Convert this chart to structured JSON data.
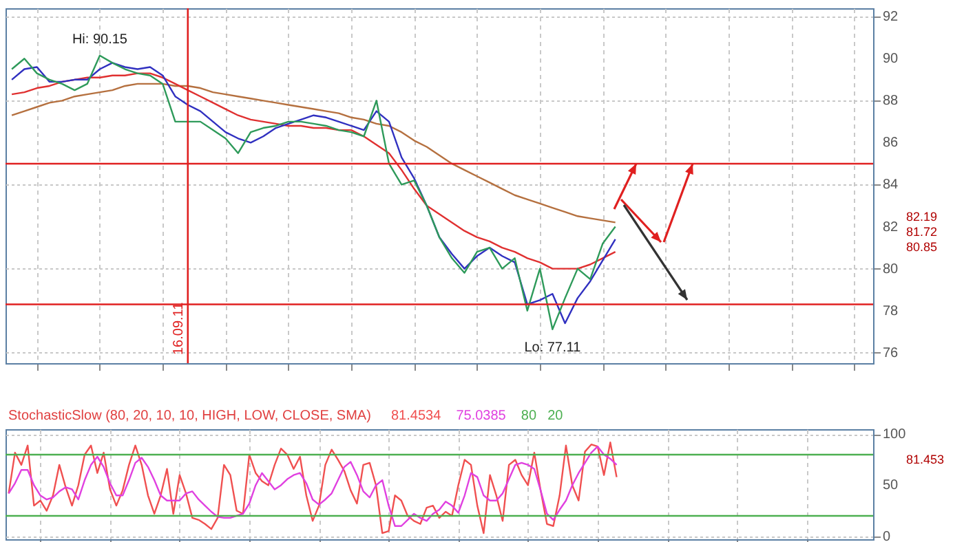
{
  "chart_data": [
    {
      "type": "line",
      "categories": [
        null,
        null,
        null,
        null,
        null,
        null,
        null,
        null,
        null,
        null,
        null,
        null,
        null,
        null,
        null,
        null,
        null,
        null,
        null,
        null,
        null,
        null,
        null,
        null,
        null,
        null,
        null,
        null,
        null,
        null,
        null,
        null,
        null,
        null,
        null,
        null,
        null,
        null,
        null,
        null,
        null,
        null,
        null,
        null,
        null,
        null,
        null,
        null,
        null,
        null,
        null,
        null,
        null,
        null,
        null,
        null,
        null,
        null,
        null,
        null,
        null,
        null,
        null,
        null,
        null,
        null,
        null,
        null,
        null
      ],
      "ylim": [
        75.5,
        92.4
      ],
      "yticks": [
        76,
        78,
        80,
        82,
        84,
        86,
        88,
        90,
        92
      ],
      "tick_labels": "y",
      "grid": true,
      "line_style": "solid",
      "series": [
        {
          "color": "#b5703f",
          "values": [
            87.3,
            87.5,
            87.7,
            87.9,
            88.0,
            88.2,
            88.3,
            88.4,
            88.5,
            88.7,
            88.8,
            88.8,
            88.8,
            88.7,
            88.7,
            88.6,
            88.4,
            88.3,
            88.2,
            88.1,
            88.0,
            87.9,
            87.8,
            87.7,
            87.6,
            87.5,
            87.4,
            87.2,
            87.1,
            86.9,
            86.8,
            86.5,
            86.1,
            85.8,
            85.4,
            85.0,
            84.7,
            84.4,
            84.1,
            83.8,
            83.5,
            83.3,
            83.1,
            82.9,
            82.7,
            82.5,
            82.4,
            82.3,
            82.2,
            null,
            null,
            null,
            null,
            null,
            null,
            null,
            null,
            null,
            null,
            null,
            null,
            null,
            null,
            null,
            null,
            null,
            null,
            null,
            null
          ]
        },
        {
          "color": "#e03030",
          "values": [
            88.3,
            88.4,
            88.6,
            88.7,
            88.9,
            89.0,
            89.1,
            89.1,
            89.2,
            89.2,
            89.3,
            89.3,
            89.1,
            88.8,
            88.5,
            88.2,
            87.9,
            87.6,
            87.3,
            87.1,
            87.0,
            86.9,
            86.8,
            86.8,
            86.7,
            86.7,
            86.6,
            86.6,
            86.3,
            85.9,
            85.5,
            84.7,
            83.8,
            83.0,
            82.6,
            82.2,
            81.8,
            81.5,
            81.3,
            81.0,
            80.8,
            80.5,
            80.3,
            80.0,
            80.0,
            80.0,
            80.2,
            80.5,
            80.8,
            null,
            null,
            null,
            null,
            null,
            null,
            null,
            null,
            null,
            null,
            null,
            null,
            null,
            null,
            null,
            null,
            null,
            null,
            null,
            null
          ]
        },
        {
          "color": "#3030c0",
          "values": [
            89.0,
            89.5,
            89.6,
            88.9,
            88.9,
            89.0,
            89.0,
            89.5,
            89.8,
            89.6,
            89.5,
            89.6,
            89.2,
            88.2,
            87.8,
            87.5,
            87.0,
            86.5,
            86.2,
            86.0,
            86.3,
            86.7,
            86.9,
            87.1,
            87.3,
            87.2,
            87.0,
            86.8,
            86.6,
            87.5,
            87.0,
            85.3,
            84.3,
            83.0,
            81.5,
            80.7,
            80.0,
            80.6,
            81.0,
            80.6,
            80.3,
            78.3,
            78.5,
            78.8,
            77.4,
            78.6,
            79.4,
            80.4,
            81.4,
            null,
            null,
            null,
            null,
            null,
            null,
            null,
            null,
            null,
            null,
            null,
            null,
            null,
            null,
            null,
            null,
            null,
            null,
            null,
            null
          ]
        },
        {
          "color": "#2e9a5a",
          "values": [
            89.5,
            90.0,
            89.3,
            89.0,
            88.8,
            88.5,
            88.8,
            90.15,
            89.8,
            89.5,
            89.3,
            89.2,
            88.8,
            87.0,
            87.0,
            87.0,
            86.6,
            86.2,
            85.5,
            86.5,
            86.7,
            86.8,
            87.0,
            87.0,
            86.9,
            86.8,
            86.6,
            86.5,
            86.3,
            88.0,
            85.0,
            84.0,
            84.2,
            83.0,
            81.5,
            80.5,
            79.8,
            80.8,
            81.0,
            80.0,
            80.5,
            78.0,
            80.0,
            77.11,
            78.6,
            80.0,
            79.5,
            81.2,
            82.0,
            null,
            null,
            null,
            null,
            null,
            null,
            null,
            null,
            null,
            null,
            null,
            null,
            null,
            null,
            null,
            null,
            null,
            null,
            null,
            null
          ]
        }
      ],
      "ref_lines": [
        {
          "axis": "y",
          "value": 85,
          "color": "#e02020"
        },
        {
          "axis": "y",
          "value": 78.3,
          "color": "#e02020"
        }
      ],
      "annotations": [
        {
          "text": "Hi: 90.15",
          "y": 90.15
        },
        {
          "text": "Lo: 77.11",
          "y": 77.11
        },
        "82.19",
        "81.72",
        "80.85",
        "16.09.11"
      ]
    },
    {
      "type": "line",
      "title": "StochasticSlow (80, 20, 10, 10, HIGH, LOW, CLOSE, SMA)",
      "categories": [
        null,
        null,
        null,
        null,
        null,
        null,
        null,
        null,
        null,
        null,
        null,
        null,
        null,
        null,
        null,
        null,
        null,
        null,
        null,
        null,
        null,
        null,
        null,
        null,
        null,
        null,
        null,
        null,
        null,
        null,
        null,
        null,
        null,
        null,
        null,
        null,
        null,
        null,
        null,
        null,
        null,
        null,
        null,
        null,
        null,
        null,
        null,
        null,
        null,
        null,
        null,
        null,
        null,
        null,
        null,
        null,
        null,
        null,
        null,
        null,
        null,
        null,
        null,
        null,
        null,
        null,
        null,
        null,
        null,
        null,
        null,
        null,
        null,
        null,
        null,
        null,
        null,
        null,
        null,
        null,
        null,
        null,
        null,
        null,
        null,
        null,
        null,
        null,
        null,
        null,
        null,
        null,
        null,
        null,
        null,
        null,
        null,
        null,
        null,
        null,
        null,
        null,
        null,
        null,
        null,
        null,
        null,
        null,
        null,
        null,
        null,
        null,
        null,
        null,
        null,
        null,
        null,
        null,
        null,
        null,
        null,
        null,
        null,
        null,
        null,
        null,
        null,
        null,
        null,
        null,
        null,
        null,
        null,
        null,
        null,
        null,
        null
      ],
      "ylim": [
        -3,
        105
      ],
      "yticks": [
        0,
        50,
        100
      ],
      "tick_labels": "y",
      "grid": true,
      "line_style": "solid",
      "series": [
        {
          "name": "81.4534",
          "color": "#f05050",
          "values": [
            42,
            82,
            70,
            89,
            30,
            35,
            25,
            40,
            70,
            48,
            30,
            50,
            80,
            89,
            62,
            82,
            46,
            30,
            45,
            70,
            89,
            70,
            40,
            22,
            40,
            66,
            22,
            60,
            42,
            18,
            16,
            12,
            7,
            18,
            70,
            60,
            25,
            22,
            80,
            62,
            54,
            50,
            70,
            86,
            80,
            66,
            78,
            40,
            15,
            30,
            70,
            85,
            75,
            64,
            45,
            32,
            70,
            72,
            50,
            3,
            5,
            40,
            35,
            20,
            15,
            12,
            28,
            30,
            18,
            24,
            20,
            50,
            75,
            70,
            30,
            3,
            60,
            40,
            15,
            70,
            75,
            60,
            50,
            82,
            45,
            12,
            10,
            40,
            89,
            50,
            35,
            83,
            90,
            88,
            60,
            92,
            58,
            null,
            null,
            null,
            null,
            null,
            null,
            null,
            null,
            null,
            null,
            null,
            null,
            null,
            null,
            null,
            null,
            null,
            null,
            null,
            null,
            null,
            null,
            null,
            null,
            null,
            null,
            null,
            null,
            null,
            null,
            null,
            null,
            null,
            null,
            null,
            null,
            null,
            null,
            null,
            null
          ]
        },
        {
          "name": "75.0385",
          "color": "#e040e0",
          "values": [
            42,
            52,
            65,
            65,
            50,
            40,
            36,
            38,
            44,
            48,
            46,
            36,
            55,
            70,
            78,
            68,
            52,
            40,
            40,
            55,
            72,
            77,
            68,
            55,
            40,
            35,
            35,
            35,
            42,
            44,
            36,
            30,
            24,
            19,
            18,
            18,
            20,
            22,
            32,
            50,
            62,
            54,
            46,
            50,
            56,
            60,
            62,
            52,
            36,
            31,
            36,
            42,
            55,
            68,
            73,
            60,
            44,
            38,
            50,
            55,
            30,
            10,
            10,
            16,
            22,
            18,
            15,
            22,
            26,
            34,
            30,
            23,
            40,
            62,
            58,
            40,
            35,
            35,
            42,
            56,
            70,
            72,
            70,
            66,
            45,
            22,
            16,
            26,
            35,
            50,
            62,
            72,
            82,
            88,
            80,
            76,
            70,
            null,
            null,
            null,
            null,
            null,
            null,
            null,
            null,
            null,
            null,
            null,
            null,
            null,
            null,
            null,
            null,
            null,
            null,
            null,
            null,
            null,
            null,
            null,
            null,
            null,
            null,
            null,
            null,
            null,
            null,
            null,
            null,
            null,
            null,
            null,
            null,
            null,
            null,
            null,
            null
          ]
        }
      ],
      "ref_lines": [
        {
          "axis": "y",
          "value": 80,
          "label": "80",
          "color": "#4caf50"
        },
        {
          "axis": "y",
          "value": 20,
          "label": "20",
          "color": "#4caf50"
        }
      ],
      "annotations": [
        "81.453"
      ]
    }
  ]
}
